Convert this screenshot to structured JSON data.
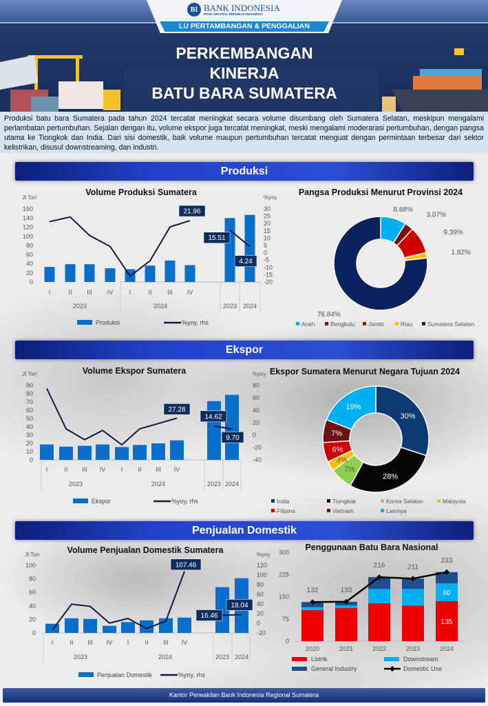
{
  "header": {
    "logo_name": "BANK INDONESIA",
    "logo_sub": "BANK SENTRAL REPUBLIK INDONESIA",
    "logo_mark": "BI",
    "sector": "LU PERTAMBANGAN & PENGGALIAN",
    "title_lines": [
      "PERKEMBANGAN",
      "KINERJA",
      "BATU BARA SUMATERA"
    ]
  },
  "intro": "Produksi batu bara Sumatera pada tahun 2024 tercatat meningkat secara volume disumbang oleh Sumatera Selatan, meskipun mengalami perlambatan pertumbuhan. Sejalan dengan itu, volume ekspor juga tercatat meningkat, meski mengalami moderarasi pertumbuhan, dengan pangsa utama ke Tiongkok dan India. Dari sisi domestik, baik volume maupun pertumbuhan tercatat menguat dengan permintaan terbesar dari sektor kelistrikan, disusul downstreaming, dan industri.",
  "sections": {
    "produksi": "Produksi",
    "ekspor": "Ekspor",
    "domestik": "Penjualan Domestik"
  },
  "footer": "Kantor Perwakilan Bank Indonesia Regional Sumatera",
  "colors": {
    "bar": "#0a6fca",
    "line": "#15173f",
    "label_box": "#0f2d5e"
  },
  "chart_data": [
    {
      "id": "produksi",
      "type": "bar+line",
      "title": "Volume Produksi Sumatera",
      "ylabel": "Jt Ton",
      "y2label": "%yoy",
      "ylim": [
        0,
        160
      ],
      "ystep": 20,
      "y2lim": [
        -20,
        30
      ],
      "y2step": 5,
      "quarters": [
        "I",
        "II",
        "III",
        "IV",
        "I",
        "II",
        "III",
        "IV"
      ],
      "quarter_years": [
        "2023",
        "2024"
      ],
      "annual": [
        "2023",
        "2024"
      ],
      "bar_name": "Produksi",
      "line_name": "%yoy, rhs",
      "bars_q": [
        33,
        39,
        39,
        30,
        28,
        36,
        47,
        37
      ],
      "bars_a": [
        140,
        147
      ],
      "line_q": [
        21.3,
        24.5,
        11.9,
        4.3,
        -16,
        -5.5,
        17.7,
        21.96
      ],
      "line_a": [
        15.51,
        4.24
      ],
      "labels": [
        {
          "series": "q",
          "index": 7,
          "text": "21.96"
        },
        {
          "series": "a",
          "index": 0,
          "text": "15.51"
        },
        {
          "series": "a",
          "index": 1,
          "text": "4.24"
        }
      ]
    },
    {
      "id": "produksi_pie",
      "type": "pie",
      "title": "Pangsa Produksi Menurut Provinsi 2024",
      "slices": [
        {
          "name": "Aceh",
          "value": 8.88,
          "label": "8.88%",
          "color": "#00b0f0"
        },
        {
          "name": "Bengkulu",
          "value": 3.07,
          "label": "3.07%",
          "color": "#7b1113"
        },
        {
          "name": "Jambi",
          "value": 9.39,
          "label": "9.39%",
          "color": "#d00000"
        },
        {
          "name": "Riau",
          "value": 1.82,
          "label": "1.82%",
          "color": "#ffc000"
        },
        {
          "name": "Sumatera Selatan",
          "value": 76.84,
          "label": "76.84%",
          "color": "#0b2260"
        }
      ]
    },
    {
      "id": "ekspor",
      "type": "bar+line",
      "title": "Volume Ekspor Sumatera",
      "ylabel": "Jt Ton",
      "y2label": "%yoy",
      "ylim": [
        0,
        90
      ],
      "ystep": 10,
      "y2lim": [
        -40,
        80
      ],
      "y2step": 20,
      "quarters": [
        "I",
        "II",
        "III",
        "IV",
        "I",
        "II",
        "III",
        "IV"
      ],
      "quarter_years": [
        "2023",
        "2024"
      ],
      "annual": [
        "2023",
        "2024"
      ],
      "bar_name": "Ekspor",
      "line_name": "%yoy, rhs",
      "bars_q": [
        18.6,
        16,
        17,
        18.6,
        15.5,
        18,
        20,
        23.6
      ],
      "bars_a": [
        71,
        78.6
      ],
      "line_q": [
        75,
        10,
        -7.5,
        7.5,
        -15.7,
        10,
        18.5,
        27.28
      ],
      "line_a": [
        14.62,
        9.7
      ],
      "labels": [
        {
          "series": "q",
          "index": 7,
          "text": "27.28"
        },
        {
          "series": "a",
          "index": 0,
          "text": "14.62"
        },
        {
          "series": "a",
          "index": 1,
          "text": "9.70"
        }
      ]
    },
    {
      "id": "ekspor_pie",
      "type": "pie",
      "title": "Ekspor Sumatera Menurut Negara Tujuan 2024",
      "slices": [
        {
          "name": "India",
          "value": 30,
          "label": "30%",
          "color": "#0c3a73"
        },
        {
          "name": "Tiongkok",
          "value": 28,
          "label": "28%",
          "color": "#050505"
        },
        {
          "name": "Korea Selatan",
          "value": 7,
          "label": "7%",
          "color": "#8fd14f"
        },
        {
          "name": "Malaysia",
          "value": 3,
          "label": "3%",
          "color": "#ffc000"
        },
        {
          "name": "Filipina",
          "value": 6,
          "label": "6%",
          "color": "#d00000"
        },
        {
          "name": "Vietnam",
          "value": 7,
          "label": "7%",
          "color": "#6e1111"
        },
        {
          "name": "Lainnya",
          "value": 19,
          "label": "19%",
          "color": "#00b0f0"
        }
      ]
    },
    {
      "id": "domestik",
      "type": "bar+line",
      "title": "Volume Penjualan Domestik Sumatera",
      "ylabel": "Jt Ton",
      "y2label": "%yoy",
      "ylim": [
        0,
        100
      ],
      "ystep": 20,
      "y2lim": [
        -20,
        120
      ],
      "y2step": 20,
      "quarters": [
        "I",
        "II",
        "III",
        "IV",
        "I",
        "II",
        "III",
        "IV"
      ],
      "quarter_years": [
        "2023",
        "2024"
      ],
      "annual": [
        "2023",
        "2024"
      ],
      "bar_name": "Penjualan Domestik",
      "line_name": "%yoy, rhs",
      "bars_q": [
        13.6,
        21.7,
        20.7,
        10.5,
        16,
        18.6,
        21.7,
        22.7
      ],
      "bars_a": [
        67.8,
        81
      ],
      "line_q": [
        -14,
        39.6,
        35,
        0.4,
        10,
        -11,
        4.7,
        107.46
      ],
      "line_a": [
        16.46,
        18.04
      ],
      "labels": [
        {
          "series": "q",
          "index": 7,
          "text": "107.46"
        },
        {
          "series": "a",
          "index": 0,
          "text": "16.46"
        },
        {
          "series": "a",
          "index": 1,
          "text": "18.04"
        }
      ]
    },
    {
      "id": "nasional",
      "type": "stacked-bar+line",
      "title": "Penggunaan Batu Bara Nasional",
      "ylim": [
        0,
        300
      ],
      "ystep": 75,
      "categories": [
        "2020",
        "2021",
        "2022",
        "2023",
        "2024"
      ],
      "series": [
        {
          "name": "Listrik",
          "values": [
            105,
            112,
            128,
            120,
            135
          ],
          "color": "#ee0000"
        },
        {
          "name": "Downstream",
          "values": [
            10,
            9,
            48,
            56,
            60
          ],
          "color": "#00b0f0"
        },
        {
          "name": "General Industry",
          "values": [
            17,
            12,
            40,
            35,
            38
          ],
          "color": "#1f4e8f"
        }
      ],
      "line": {
        "name": "Domestic Use",
        "values": [
          132,
          133,
          216,
          211,
          233
        ]
      },
      "segment_labels": [
        {
          "category": "2024",
          "series": "Listrik",
          "text": "135"
        },
        {
          "category": "2024",
          "series": "Downstream",
          "text": "60"
        }
      ]
    }
  ]
}
